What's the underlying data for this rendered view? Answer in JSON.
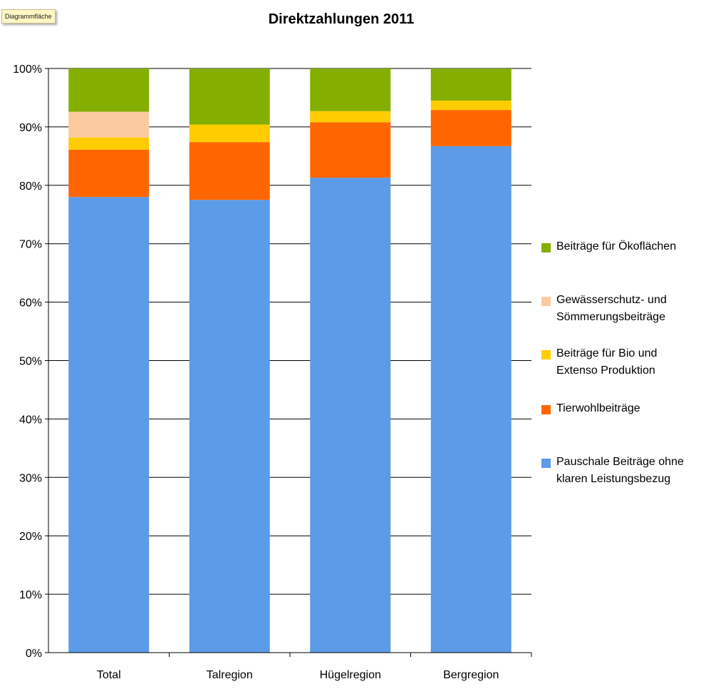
{
  "tooltip": "Diagrammfläche",
  "chart_data": {
    "type": "bar",
    "stacked": true,
    "title": "Direktzahlungen 2011",
    "categories": [
      "Total",
      "Talregion",
      "Hügelregion",
      "Bergregion"
    ],
    "ylim": [
      0,
      100
    ],
    "yticks": [
      "0%",
      "10%",
      "20%",
      "30%",
      "40%",
      "50%",
      "60%",
      "70%",
      "80%",
      "90%",
      "100%"
    ],
    "grid": true,
    "legend_position": "right",
    "series": [
      {
        "name": "Pauschale Beiträge ohne\nklaren Leistungsbezug",
        "color": "#5b9be8",
        "values": [
          78.0,
          77.5,
          81.3,
          86.7
        ]
      },
      {
        "name": "Tierwohlbeiträge",
        "color": "#ff6600",
        "values": [
          8.1,
          9.9,
          9.5,
          6.2
        ]
      },
      {
        "name": "Beiträge für Bio und\nExtenso Produktion",
        "color": "#ffcc00",
        "values": [
          2.1,
          3.0,
          1.9,
          1.6
        ]
      },
      {
        "name": "Gewässerschutz- und\nSömmerungsbeiträge",
        "color": "#fbcb9f",
        "values": [
          4.4,
          0.0,
          0.0,
          0.0
        ]
      },
      {
        "name": "Beiträge für Ökoflächen",
        "color": "#84ae00",
        "values": [
          7.4,
          9.6,
          7.3,
          5.5
        ]
      }
    ]
  }
}
